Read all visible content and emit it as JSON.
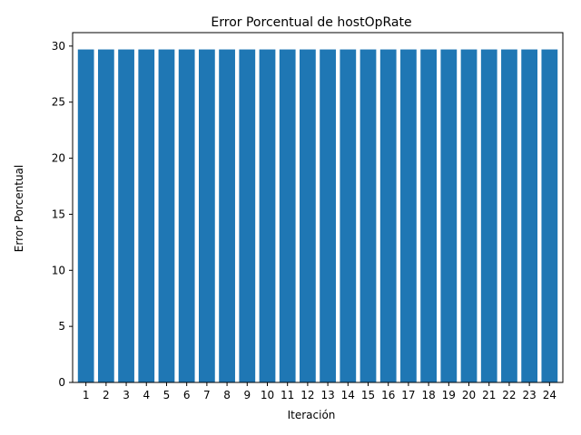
{
  "chart_data": {
    "type": "bar",
    "title": "Error Porcentual de hostOpRate",
    "xlabel": "Iteración",
    "ylabel": "Error Porcentual",
    "categories": [
      "1",
      "2",
      "3",
      "4",
      "5",
      "6",
      "7",
      "8",
      "9",
      "10",
      "11",
      "12",
      "13",
      "14",
      "15",
      "16",
      "17",
      "18",
      "19",
      "20",
      "21",
      "22",
      "23",
      "24"
    ],
    "values": [
      29.7,
      29.7,
      29.7,
      29.7,
      29.7,
      29.7,
      29.7,
      29.7,
      29.7,
      29.7,
      29.7,
      29.7,
      29.7,
      29.7,
      29.7,
      29.7,
      29.7,
      29.7,
      29.7,
      29.7,
      29.7,
      29.7,
      29.7,
      29.7
    ],
    "ylim": [
      0,
      31.2
    ],
    "yticks": [
      0,
      5,
      10,
      15,
      20,
      25,
      30
    ],
    "grid": false,
    "bar_color": "#1f77b4"
  }
}
